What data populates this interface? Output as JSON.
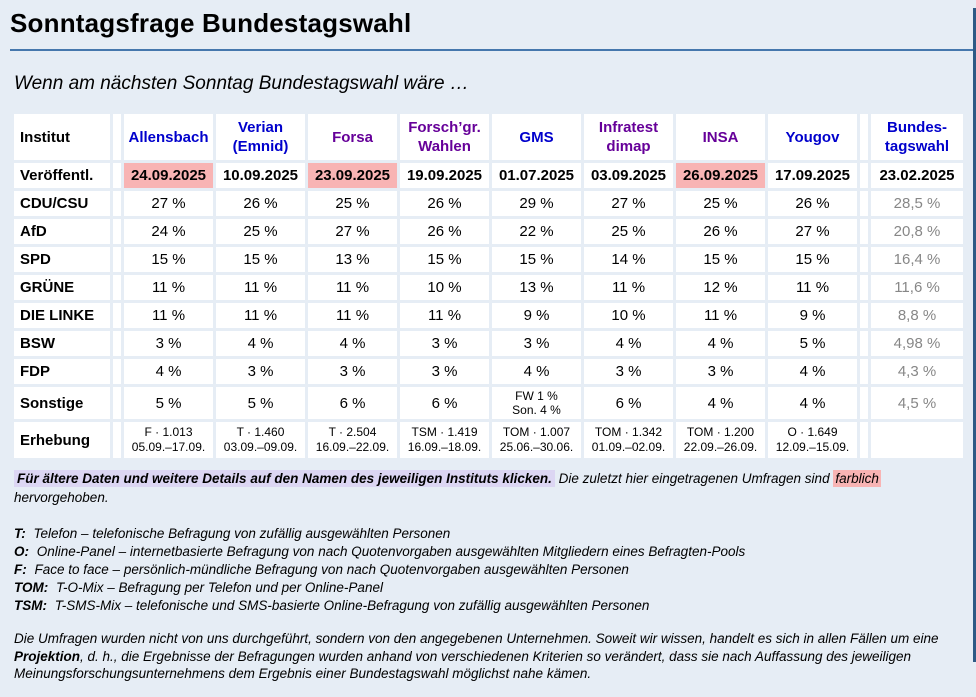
{
  "page": {
    "title": "Sonntagsfrage Bundestagswahl",
    "subtitle": "Wenn am nächsten Sonntag Bundestagswahl wäre …"
  },
  "colors": {
    "page_background": "#e6edf5",
    "rule_blue": "#4577ad",
    "link_blue": "#0000cc",
    "link_visited_purple": "#660099",
    "highlight_pink": "#f8b4b4",
    "note_highlight_lavender": "#dcd6f3",
    "result_gray": "#878787",
    "window_edge_blue": "#2e5a85"
  },
  "table": {
    "corner_label": "Institut",
    "publish_label": "Veröffentl.",
    "survey_label": "Erhebung",
    "institutes": [
      {
        "name": "Allensbach",
        "visited": false,
        "published": "24.09.2025",
        "highlighted": true,
        "survey": [
          "F · 1.013",
          "05.09.–17.09."
        ]
      },
      {
        "name": "Verian\n(Emnid)",
        "visited": false,
        "published": "10.09.2025",
        "highlighted": false,
        "survey": [
          "T · 1.460",
          "03.09.–09.09."
        ]
      },
      {
        "name": "Forsa",
        "visited": true,
        "published": "23.09.2025",
        "highlighted": true,
        "survey": [
          "T · 2.504",
          "16.09.–22.09."
        ]
      },
      {
        "name": "Forsch’gr.\nWahlen",
        "visited": true,
        "published": "19.09.2025",
        "highlighted": false,
        "survey": [
          "TSM · 1.419",
          "16.09.–18.09."
        ]
      },
      {
        "name": "GMS",
        "visited": false,
        "published": "01.07.2025",
        "highlighted": false,
        "survey": [
          "TOM · 1.007",
          "25.06.–30.06."
        ]
      },
      {
        "name": "Infratest\ndimap",
        "visited": true,
        "published": "03.09.2025",
        "highlighted": false,
        "survey": [
          "TOM · 1.342",
          "01.09.–02.09."
        ]
      },
      {
        "name": "INSA",
        "visited": true,
        "published": "26.09.2025",
        "highlighted": true,
        "survey": [
          "TOM · 1.200",
          "22.09.–26.09."
        ]
      },
      {
        "name": "Yougov",
        "visited": false,
        "published": "17.09.2025",
        "highlighted": false,
        "survey": [
          "O · 1.649",
          "12.09.–15.09."
        ]
      },
      {
        "name": "Bundes-\ntagswahl",
        "visited": false,
        "published": "23.02.2025",
        "highlighted": false,
        "survey": [
          "",
          ""
        ]
      }
    ],
    "parties": [
      {
        "name": "CDU/CSU",
        "values": [
          "27 %",
          "26 %",
          "25 %",
          "26 %",
          "29 %",
          "27 %",
          "25 %",
          "26 %"
        ],
        "result": "28,5 %"
      },
      {
        "name": "AfD",
        "values": [
          "24 %",
          "25 %",
          "27 %",
          "26 %",
          "22 %",
          "25 %",
          "26 %",
          "27 %"
        ],
        "result": "20,8 %"
      },
      {
        "name": "SPD",
        "values": [
          "15 %",
          "15 %",
          "13 %",
          "15 %",
          "15 %",
          "14 %",
          "15 %",
          "15 %"
        ],
        "result": "16,4 %"
      },
      {
        "name": "GRÜNE",
        "values": [
          "11 %",
          "11 %",
          "11 %",
          "10 %",
          "13 %",
          "11 %",
          "12 %",
          "11 %"
        ],
        "result": "11,6 %"
      },
      {
        "name": "DIE LINKE",
        "values": [
          "11 %",
          "11 %",
          "11 %",
          "11 %",
          "9 %",
          "10 %",
          "11 %",
          "9 %"
        ],
        "result": "8,8 %"
      },
      {
        "name": "BSW",
        "values": [
          "3 %",
          "4 %",
          "4 %",
          "3 %",
          "3 %",
          "4 %",
          "4 %",
          "5 %"
        ],
        "result": "4,98 %"
      },
      {
        "name": "FDP",
        "values": [
          "4 %",
          "3 %",
          "3 %",
          "3 %",
          "4 %",
          "3 %",
          "3 %",
          "4 %"
        ],
        "result": "4,3 %"
      },
      {
        "name": "Sonstige",
        "values": [
          "5 %",
          "5 %",
          "6 %",
          "6 %",
          "FW 1 %\nSon. 4 %",
          "6 %",
          "4 %",
          "4 %"
        ],
        "result": "4,5 %"
      }
    ]
  },
  "notes": {
    "note1": "Für ältere Daten und weitere Details auf den Namen des jeweiligen Instituts klicken.",
    "note2_pre": "Die zuletzt hier eingetragenen Umfragen sind",
    "note2_highlight": "farblich",
    "note2_post": "hervorgehoben."
  },
  "legend": [
    {
      "key": "T:",
      "text": "Telefon – telefonische Befragung von zufällig ausgewählten Personen"
    },
    {
      "key": "O:",
      "text": "Online-Panel – internetbasierte Befragung von nach Quotenvorgaben ausgewählten Mitgliedern eines Befragten-Pools"
    },
    {
      "key": "F:",
      "text": "Face to face – persönlich-mündliche Befragung von nach Quotenvorgaben ausgewählten Personen"
    },
    {
      "key": "TOM:",
      "text": "T-O-Mix – Befragung per Telefon und per Online-Panel"
    },
    {
      "key": "TSM:",
      "text": "T-SMS-Mix – telefonische und SMS-basierte Online-Befragung von zufällig ausgewählten Personen"
    }
  ],
  "disclaimer": {
    "part1": "Die Umfragen wurden nicht von uns durchgeführt, sondern von den angegebenen Unternehmen. Soweit wir wissen, handelt es sich in allen Fällen um eine",
    "bold": "Projektion",
    "part2": ", d. h., die Ergebnisse der Befragungen wurden anhand von verschiedenen Kriterien so verändert, dass sie nach Auffassung des jeweiligen Meinungsforschungsunternehmens dem Ergebnis einer Bundestagswahl möglichst nahe kämen."
  }
}
